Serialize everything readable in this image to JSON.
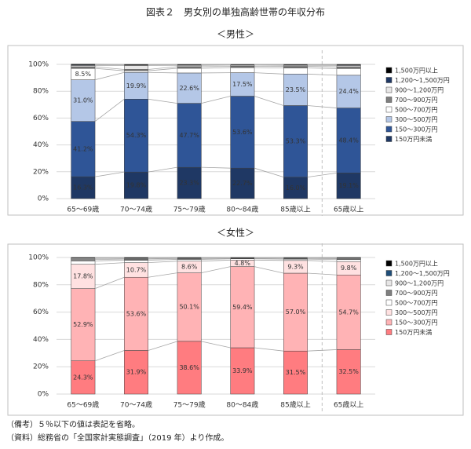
{
  "title": "図表２　男女別の単独高齢世帯の年収分布",
  "notes": [
    "（備考）５％以下の値は表記を省略。",
    "（資料）総務省の「全国家計実態調査」（2019 年）より作成。"
  ],
  "chart_data": [
    {
      "type": "stacked_bar",
      "title": "＜男性＞",
      "categories": [
        "65～69歳",
        "70～74歳",
        "75～79歳",
        "80～84歳",
        "85歳以上",
        "65歳以上"
      ],
      "ylim": [
        0,
        100
      ],
      "yticks": [
        {
          "value": 0,
          "label": "0%"
        },
        {
          "value": 20,
          "label": "20%"
        },
        {
          "value": 40,
          "label": "40%"
        },
        {
          "value": 60,
          "label": "60%"
        },
        {
          "value": 80,
          "label": "80%"
        },
        {
          "value": 100,
          "label": "100%"
        }
      ],
      "grid": true,
      "series": [
        {
          "name": "150万円未満",
          "color": "#1f3864",
          "label_color": "#ffffff",
          "values": [
            16.3,
            19.8,
            23.3,
            22.7,
            16.0,
            19.1
          ],
          "value_labels": [
            "16.3%",
            "19.8%",
            "23.3%",
            "22.7%",
            "16.0%",
            "19.1%"
          ]
        },
        {
          "name": "150～300万円",
          "color": "#2f5597",
          "label_color": "#ffffff",
          "values": [
            41.2,
            54.3,
            47.7,
            53.6,
            53.3,
            48.4
          ],
          "value_labels": [
            "41.2%",
            "54.3%",
            "47.7%",
            "53.6%",
            "53.3%",
            "48.4%"
          ]
        },
        {
          "name": "300～500万円",
          "color": "#b4c7e7",
          "label_color": "#1f3864",
          "values": [
            31.0,
            19.9,
            22.6,
            17.5,
            23.5,
            24.4
          ],
          "value_labels": [
            "31.0%",
            "19.9%",
            "22.6%",
            "17.5%",
            "23.5%",
            "24.4%"
          ]
        },
        {
          "name": "500～700万円",
          "color": "#ffffff",
          "label_color": "#222222",
          "values": [
            8.5,
            1.2,
            3.5,
            3.8,
            4.5,
            5.0
          ],
          "value_labels": [
            "8.5%",
            null,
            null,
            null,
            null,
            null
          ]
        },
        {
          "name": "700～900万円",
          "color": "#7f7f7f",
          "label_color": "#ffffff",
          "values": [
            1.2,
            1.0,
            1.2,
            1.0,
            1.2,
            1.3
          ]
        },
        {
          "name": "900～1,200万円",
          "color": "#e7e6e6",
          "label_color": "#222222",
          "values": [
            1.0,
            3.0,
            1.0,
            0.8,
            0.8,
            1.0
          ]
        },
        {
          "name": "1,200～1,500万円",
          "color": "#203864",
          "label_color": "#ffffff",
          "values": [
            0.5,
            0.3,
            0.3,
            0.3,
            0.3,
            0.4
          ]
        },
        {
          "name": "1,500万円以上",
          "color": "#000000",
          "label_color": "#ffffff",
          "values": [
            0.5,
            0.5,
            0.4,
            0.3,
            0.4,
            0.4
          ]
        }
      ]
    },
    {
      "type": "stacked_bar",
      "title": "＜女性＞",
      "categories": [
        "65～69歳",
        "70～74歳",
        "75～79歳",
        "80～84歳",
        "85歳以上",
        "65歳以上"
      ],
      "ylim": [
        0,
        100
      ],
      "yticks": [
        {
          "value": 0,
          "label": "0%"
        },
        {
          "value": 20,
          "label": "20%"
        },
        {
          "value": 40,
          "label": "40%"
        },
        {
          "value": 60,
          "label": "60%"
        },
        {
          "value": 80,
          "label": "80%"
        },
        {
          "value": 100,
          "label": "100%"
        }
      ],
      "grid": true,
      "series": [
        {
          "name": "150万円未満",
          "color": "#ff7c80",
          "label_color": "#222222",
          "values": [
            24.3,
            31.9,
            38.6,
            33.9,
            31.5,
            32.5
          ],
          "value_labels": [
            "24.3%",
            "31.9%",
            "38.6%",
            "33.9%",
            "31.5%",
            "32.5%"
          ]
        },
        {
          "name": "150～300万円",
          "color": "#ffb3b5",
          "label_color": "#222222",
          "values": [
            52.9,
            53.6,
            50.1,
            59.4,
            57.0,
            54.7
          ],
          "value_labels": [
            "52.9%",
            "53.6%",
            "50.1%",
            "59.4%",
            "57.0%",
            "54.7%"
          ]
        },
        {
          "name": "300～500万円",
          "color": "#ffe1e1",
          "label_color": "#222222",
          "values": [
            17.8,
            10.7,
            8.6,
            4.8,
            9.3,
            9.8
          ],
          "value_labels": [
            "17.8%",
            "10.7%",
            "8.6%",
            "4.8%",
            "9.3%",
            "9.8%"
          ]
        },
        {
          "name": "500～700万円",
          "color": "#ffffff",
          "label_color": "#222222",
          "values": [
            2.5,
            1.8,
            1.3,
            0.9,
            1.0,
            1.4
          ]
        },
        {
          "name": "700～900万円",
          "color": "#7f7f7f",
          "label_color": "#ffffff",
          "values": [
            1.0,
            0.8,
            0.6,
            0.4,
            0.5,
            0.7
          ]
        },
        {
          "name": "900～1,200万円",
          "color": "#e7e6e6",
          "label_color": "#222222",
          "values": [
            0.8,
            0.5,
            0.4,
            0.3,
            0.4,
            0.5
          ]
        },
        {
          "name": "1,200～1,500万円",
          "color": "#1f4e79",
          "label_color": "#ffffff",
          "values": [
            0.3,
            0.2,
            0.2,
            0.1,
            0.1,
            0.2
          ]
        },
        {
          "name": "1,500万円以上",
          "color": "#000000",
          "label_color": "#ffffff",
          "values": [
            0.4,
            0.5,
            0.2,
            0.2,
            0.2,
            0.2
          ]
        }
      ]
    }
  ]
}
